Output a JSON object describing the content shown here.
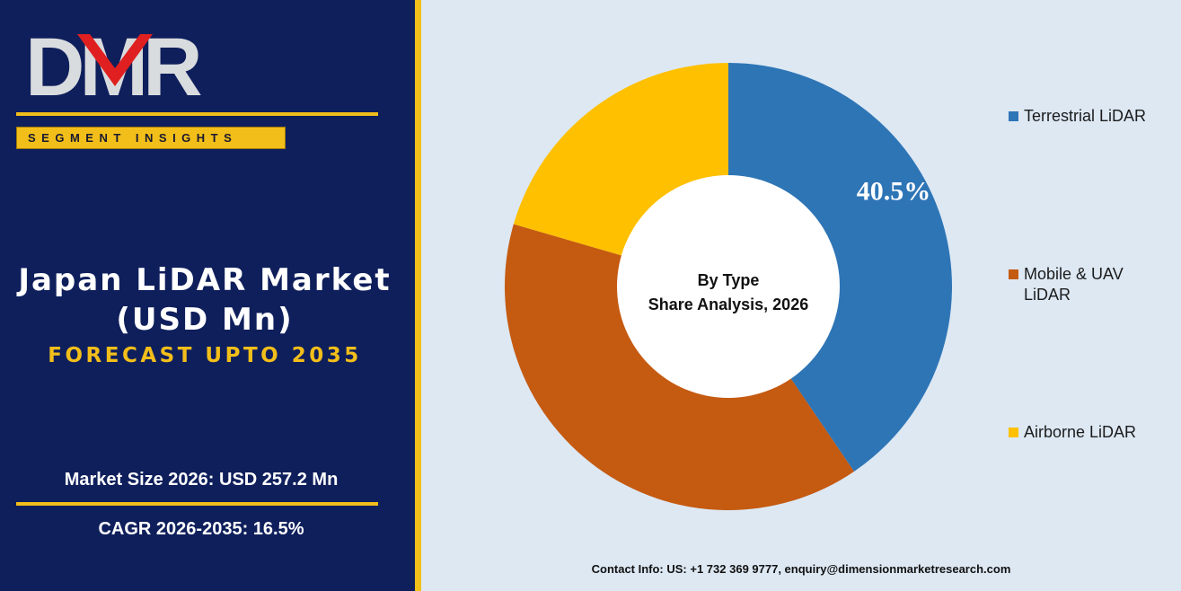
{
  "brand": {
    "logo_text": "DMR",
    "tagline": "SEGMENT INSIGHTS"
  },
  "title": {
    "line1": "Japan LiDAR Market",
    "line2": "(USD Mn)",
    "forecast": "FORECAST UPTO 2035"
  },
  "stats": {
    "market_size": "Market Size 2026: USD 257.2 Mn",
    "cagr": "CAGR 2026-2035: 16.5%"
  },
  "contact": "Contact Info: US: +1 732 369 9777, enquiry@dimensionmarketresearch.com",
  "colors": {
    "panel": "#0f1f5c",
    "accent": "#f2be1a",
    "background": "#dde8f3"
  },
  "chart_data": {
    "type": "pie",
    "variant": "donut",
    "center_label": [
      "By Type",
      "Share Analysis, 2026"
    ],
    "categories": [
      "Terrestrial LiDAR",
      "Mobile & UAV LiDAR",
      "Airborne LiDAR"
    ],
    "legend_labels": [
      [
        "Terrestrial LiDAR"
      ],
      [
        "Mobile & UAV",
        "LiDAR"
      ],
      [
        "Airborne LiDAR"
      ]
    ],
    "values": [
      40.5,
      39.0,
      20.5
    ],
    "colors": [
      "#2e75b6",
      "#c55a11",
      "#ffc000"
    ],
    "data_labels": [
      "40.5%",
      "",
      ""
    ],
    "legend_position": "right"
  }
}
